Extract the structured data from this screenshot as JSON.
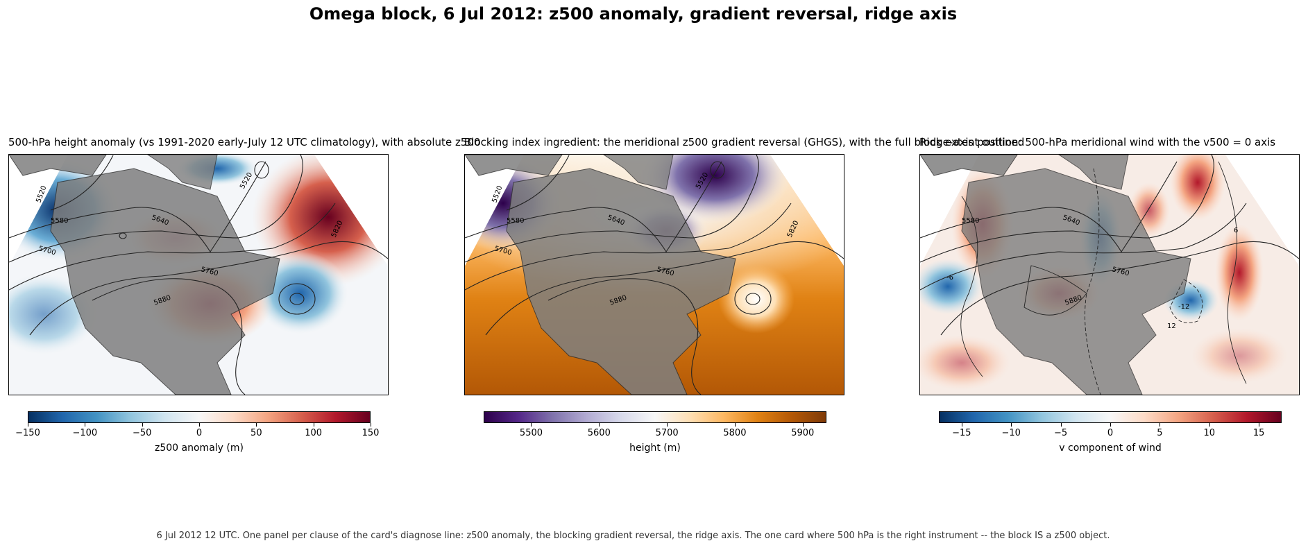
{
  "title": "Omega block, 6 Jul 2012: z500 anomaly, gradient reversal, ridge axis",
  "footer": "6 Jul 2012 12 UTC. One panel per clause of the card's diagnose line: z500 anomaly, the blocking gradient reversal, the ridge axis. The one card where 500 hPa is the right instrument -- the block IS a z500 object.",
  "panels": [
    {
      "title": "500-hPa height anomaly (vs 1991-2020 early-July 12 UTC climatology), with absolute z500",
      "colorbar": {
        "label": "z500 anomaly (m)",
        "ticks": [
          "−150",
          "−100",
          "−50",
          "0",
          "50",
          "100",
          "150"
        ],
        "range": [
          -150,
          150
        ],
        "colors": [
          "#053061",
          "#2166ac",
          "#4393c3",
          "#92c5de",
          "#d1e5f0",
          "#f7f7f7",
          "#fddbc7",
          "#f4a582",
          "#d6604d",
          "#b2182b",
          "#67001f"
        ]
      },
      "contour_labels": [
        "5520",
        "5580",
        "5640",
        "5700",
        "5760",
        "5820",
        "5880",
        "5520"
      ]
    },
    {
      "title": "Blocking index ingredient: the meridional z500 gradient reversal (GHGS), with the full block extent outlined",
      "colorbar": {
        "label": "height (m)",
        "ticks": [
          "5500",
          "5600",
          "5700",
          "5800",
          "5900"
        ],
        "range": [
          5430,
          5935
        ],
        "colors": [
          "#2d004b",
          "#542788",
          "#8073ac",
          "#b2abd2",
          "#d8daeb",
          "#f7f7f7",
          "#fee0b6",
          "#fdb863",
          "#e08214",
          "#b35806",
          "#7f3b08"
        ]
      },
      "contour_labels": [
        "5520",
        "5580",
        "5640",
        "5700",
        "5760",
        "5820",
        "5880",
        "5520"
      ]
    },
    {
      "title": "Ridge-axis position: 500-hPa meridional wind with the v500 = 0 axis",
      "colorbar": {
        "label": "v component of wind",
        "ticks": [
          "−15",
          "−10",
          "−5",
          "0",
          "5",
          "10",
          "15"
        ],
        "range": [
          -17.3,
          17.3
        ],
        "colors": [
          "#053061",
          "#2166ac",
          "#4393c3",
          "#92c5de",
          "#d1e5f0",
          "#f7f7f7",
          "#fddbc7",
          "#f4a582",
          "#d6604d",
          "#b2182b",
          "#67001f"
        ]
      },
      "contour_labels": [
        "5640",
        "5760",
        "5880",
        "5580",
        "-6",
        "6",
        "12",
        "-12"
      ]
    }
  ]
}
